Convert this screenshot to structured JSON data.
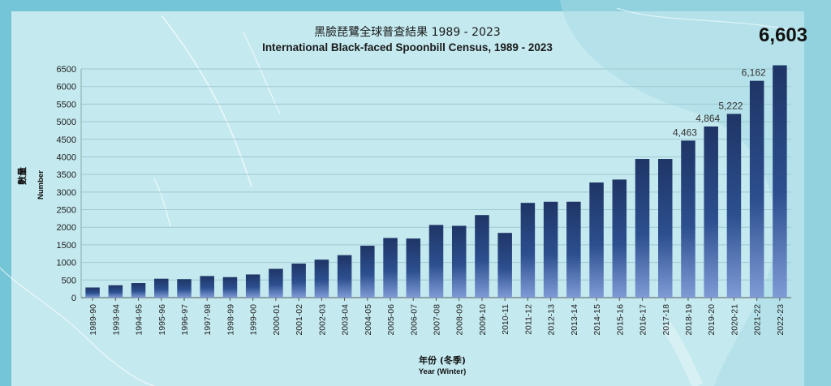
{
  "chart_data": {
    "type": "bar",
    "title": "黑臉琵鷺全球普查結果 1989 - 2023",
    "subtitle": "International Black-faced Spoonbill Census, 1989 - 2023",
    "ylabel_zh": "數量",
    "ylabel": "Number",
    "xlabel_zh": "年份 (冬季)",
    "xlabel": "Year (Winter)",
    "ylim": [
      0,
      6500
    ],
    "yticks": [
      0,
      500,
      1000,
      1500,
      2000,
      2500,
      3000,
      3500,
      4000,
      4500,
      5000,
      5500,
      6000,
      6500
    ],
    "grid": true,
    "categories": [
      "1989-90",
      "1993-94",
      "1994-95",
      "1995-96",
      "1996-97",
      "1997-98",
      "1998-99",
      "1999-00",
      "2000-01",
      "2001-02",
      "2002-03",
      "2003-04",
      "2004-05",
      "2005-06",
      "2006-07",
      "2007-08",
      "2008-09",
      "2009-10",
      "2010-11",
      "2011-12",
      "2012-13",
      "2013-14",
      "2014-15",
      "2015-16",
      "2016-17",
      "2017-18",
      "2018-19",
      "2019-20",
      "2020-21",
      "2021-22",
      "2022-23"
    ],
    "values": [
      288,
      351,
      414,
      537,
      525,
      613,
      582,
      658,
      818,
      967,
      1079,
      1207,
      1475,
      1695,
      1679,
      2065,
      2041,
      2346,
      1839,
      2693,
      2725,
      2726,
      3272,
      3356,
      3941,
      3941,
      4463,
      4864,
      5222,
      6162,
      6603
    ],
    "data_labels": [
      {
        "category": "2018-19",
        "text": "4,463"
      },
      {
        "category": "2019-20",
        "text": "4,864"
      },
      {
        "category": "2020-21",
        "text": "5,222"
      },
      {
        "category": "2021-22",
        "text": "6,162"
      }
    ],
    "callout": "6,603"
  },
  "colors": {
    "bar_top": "#1f3566",
    "bar_mid": "#2c4f8f",
    "bar_bottom": "#7f9bd6",
    "plot_bg": "#c4e9ef",
    "frame_bg": "#74c5d5",
    "gridline": "#9fc9d2"
  }
}
